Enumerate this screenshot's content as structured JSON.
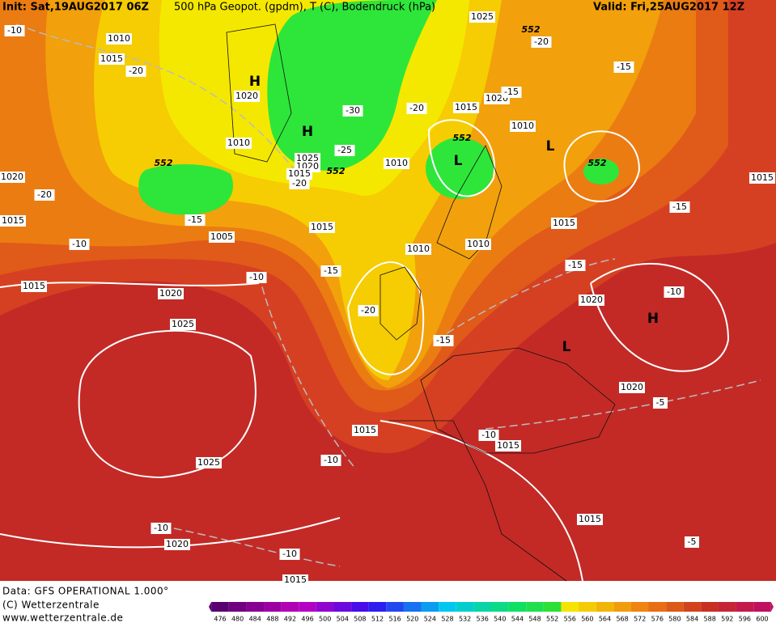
{
  "header": {
    "init": "Init: Sat,19AUG2017 06Z",
    "title": "500 hPa Geopot. (gpdm), T (C), Bodendruck (hPa)",
    "valid": "Valid: Fri,25AUG2017 12Z"
  },
  "footer": {
    "data": "Data: GFS OPERATIONAL 1.000°",
    "copyright": "(C) Wetterzentrale",
    "url": "www.wetterzentrale.de"
  },
  "colorbar": {
    "labels": [
      476,
      480,
      484,
      488,
      492,
      496,
      500,
      504,
      508,
      512,
      516,
      520,
      524,
      528,
      532,
      536,
      540,
      544,
      548,
      552,
      556,
      560,
      564,
      568,
      572,
      576,
      580,
      584,
      588,
      592,
      596,
      600
    ]
  },
  "map_labels": [
    "-10",
    "1010",
    "1015",
    "-20",
    "H",
    "1020",
    "H",
    "-30",
    "-25",
    "1025",
    "1020",
    "1015",
    "552",
    "-20",
    "1010",
    "1010",
    "552",
    "1020",
    "-20",
    "1015",
    "-15",
    "1005",
    "-10",
    "1015",
    "-10",
    "-15",
    "1015",
    "1020",
    "1025",
    "-20",
    "1010",
    "1010",
    "-15",
    "-20",
    "1015",
    "1020",
    "-15",
    "552",
    "-20",
    "1025",
    "L",
    "552",
    "1010",
    "L",
    "552",
    "-15",
    "1015",
    "-15",
    "-15",
    "1015",
    "-10",
    "1020",
    "H",
    "L",
    "1020",
    "-5",
    "1015",
    "-10",
    "1015",
    "1025",
    "-10",
    "1015",
    "-10",
    "1020",
    "-5",
    "-10",
    "1015"
  ]
}
